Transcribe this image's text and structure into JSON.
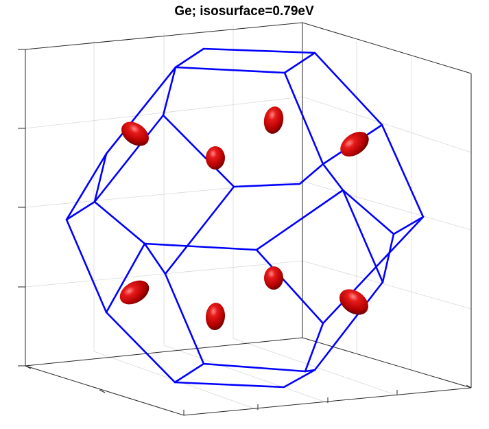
{
  "figure": {
    "title": "Ge; isosurface=0.79eV"
  },
  "colors": {
    "brillouin_zone": "#0000ff",
    "isosurface": "#cc0000",
    "box": "#262626",
    "grid": "#d9d9d9"
  },
  "isosurface_pockets": [
    {
      "name": "pocket-upper-left"
    },
    {
      "name": "pocket-upper-center"
    },
    {
      "name": "pocket-top-center"
    },
    {
      "name": "pocket-upper-right"
    },
    {
      "name": "pocket-lower-left"
    },
    {
      "name": "pocket-bottom-center"
    },
    {
      "name": "pocket-lower-center"
    },
    {
      "name": "pocket-lower-right"
    }
  ]
}
